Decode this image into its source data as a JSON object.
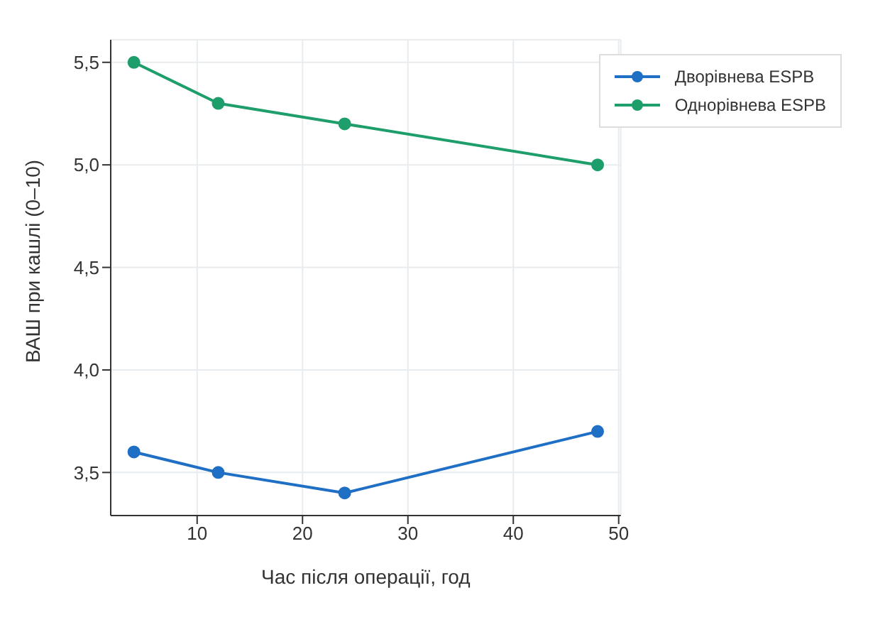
{
  "chart_data": {
    "type": "line",
    "xlabel": "Час після операції, год",
    "ylabel": "ВАШ при кашлі (0–10)",
    "x": [
      4,
      12,
      24,
      48
    ],
    "series": [
      {
        "name": "Дворівнева ESPB",
        "color": "#1f6fc4",
        "values": [
          3.6,
          3.5,
          3.4,
          3.7
        ]
      },
      {
        "name": "Однорівнева ESPB",
        "color": "#1e9e6a",
        "values": [
          5.5,
          5.3,
          5.2,
          5.0
        ]
      }
    ],
    "xlim": [
      1.8,
      50.2
    ],
    "xticks": [
      10,
      20,
      30,
      40,
      50
    ],
    "ylim": [
      3.29,
      5.61
    ],
    "yticks": [
      {
        "value": 3.5,
        "label": "3,5"
      },
      {
        "value": 4.0,
        "label": "4,0"
      },
      {
        "value": 4.5,
        "label": "4,5"
      },
      {
        "value": 5.0,
        "label": "5,0"
      },
      {
        "value": 5.5,
        "label": "5,5"
      }
    ],
    "grid": true,
    "legend": "top right",
    "marker": "circle",
    "line_style": "solid"
  }
}
